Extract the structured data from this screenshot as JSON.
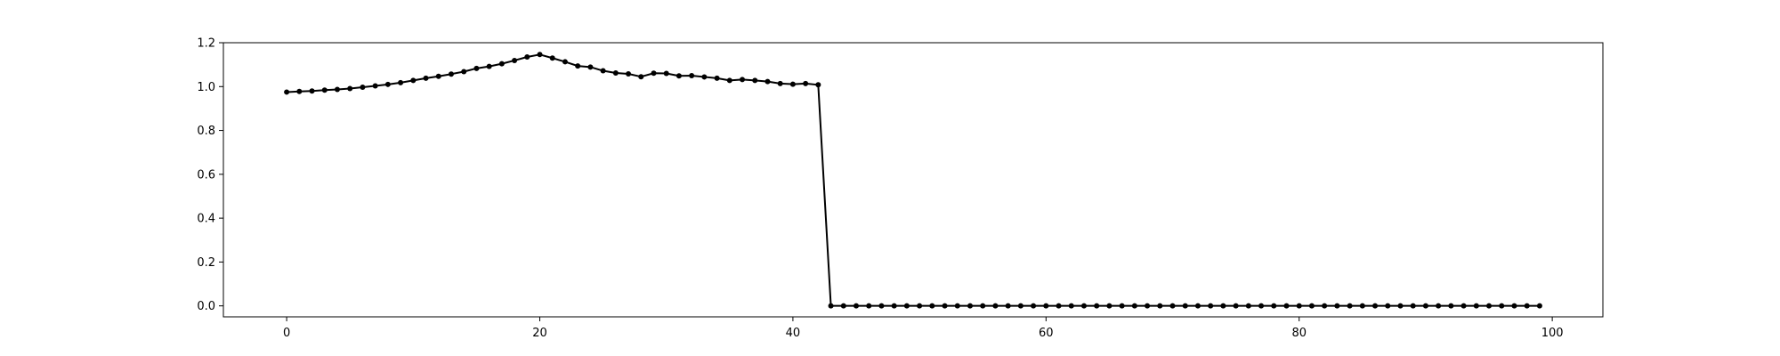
{
  "chart_data": {
    "type": "line",
    "title": "",
    "xlabel": "",
    "ylabel": "",
    "xlim": [
      -5,
      104
    ],
    "ylim": [
      -0.05,
      1.2
    ],
    "grid": false,
    "xticks": [
      0,
      20,
      40,
      60,
      80,
      100
    ],
    "xtick_labels": [
      "0",
      "20",
      "40",
      "60",
      "80",
      "100"
    ],
    "yticks": [
      0.0,
      0.2,
      0.4,
      0.6,
      0.8,
      1.0,
      1.2
    ],
    "ytick_labels": [
      "0.0",
      "0.2",
      "0.4",
      "0.6",
      "0.8",
      "1.0",
      "1.2"
    ],
    "series": [
      {
        "name": "series",
        "color": "#000000",
        "marker": "circle",
        "x": [
          0,
          1,
          2,
          3,
          4,
          5,
          6,
          7,
          8,
          9,
          10,
          11,
          12,
          13,
          14,
          15,
          16,
          17,
          18,
          19,
          20,
          21,
          22,
          23,
          24,
          25,
          26,
          27,
          28,
          29,
          30,
          31,
          32,
          33,
          34,
          35,
          36,
          37,
          38,
          39,
          40,
          41,
          42,
          43,
          44,
          45,
          46,
          47,
          48,
          49,
          50,
          51,
          52,
          53,
          54,
          55,
          56,
          57,
          58,
          59,
          60,
          61,
          62,
          63,
          64,
          65,
          66,
          67,
          68,
          69,
          70,
          71,
          72,
          73,
          74,
          75,
          76,
          77,
          78,
          79,
          80,
          81,
          82,
          83,
          84,
          85,
          86,
          87,
          88,
          89,
          90,
          91,
          92,
          93,
          94,
          95,
          96,
          97,
          98,
          99
        ],
        "values": [
          0.975,
          0.978,
          0.98,
          0.984,
          0.987,
          0.991,
          0.997,
          1.003,
          1.01,
          1.018,
          1.028,
          1.038,
          1.047,
          1.057,
          1.068,
          1.083,
          1.092,
          1.104,
          1.119,
          1.135,
          1.146,
          1.13,
          1.113,
          1.094,
          1.089,
          1.072,
          1.062,
          1.058,
          1.045,
          1.061,
          1.06,
          1.049,
          1.05,
          1.044,
          1.038,
          1.028,
          1.032,
          1.028,
          1.023,
          1.014,
          1.011,
          1.014,
          1.008,
          0.0,
          0.0,
          0.0,
          0.0,
          0.0,
          0.0,
          0.0,
          0.0,
          0.0,
          0.0,
          0.0,
          0.0,
          0.0,
          0.0,
          0.0,
          0.0,
          0.0,
          0.0,
          0.0,
          0.0,
          0.0,
          0.0,
          0.0,
          0.0,
          0.0,
          0.0,
          0.0,
          0.0,
          0.0,
          0.0,
          0.0,
          0.0,
          0.0,
          0.0,
          0.0,
          0.0,
          0.0,
          0.0,
          0.0,
          0.0,
          0.0,
          0.0,
          0.0,
          0.0,
          0.0,
          0.0,
          0.0,
          0.0,
          0.0,
          0.0,
          0.0,
          0.0,
          0.0,
          0.0,
          0.0,
          0.0,
          0.0
        ]
      }
    ]
  }
}
